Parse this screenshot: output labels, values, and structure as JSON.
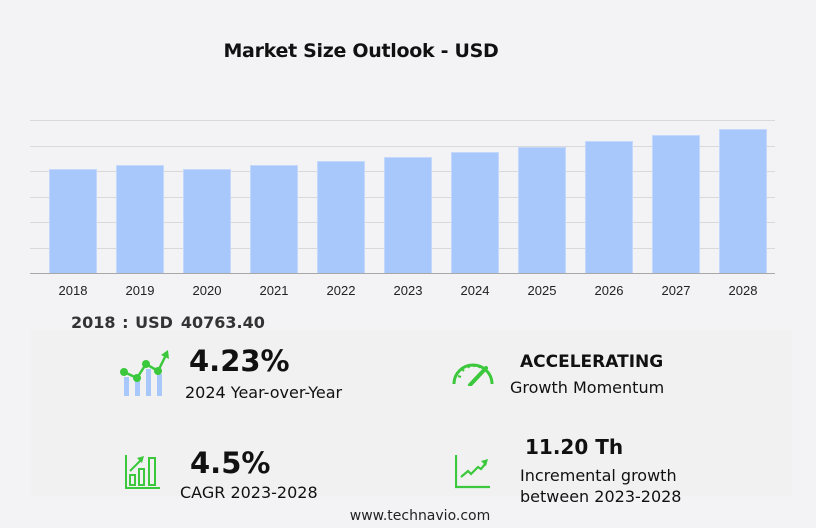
{
  "title": "Market Size Outlook  - USD",
  "chart_data": {
    "type": "bar",
    "title": "Market Size Outlook  - USD",
    "xlabel": "",
    "ylabel": "",
    "categories": [
      "2018",
      "2019",
      "2020",
      "2021",
      "2022",
      "2023",
      "2024",
      "2025",
      "2026",
      "2027",
      "2028"
    ],
    "values": [
      40763.4,
      42350,
      40760,
      42350,
      43900,
      45450,
      47370,
      49400,
      51700,
      54100,
      56650
    ],
    "ylim": [
      0,
      60000
    ],
    "y_gridlines": [
      0,
      10000,
      20000,
      30000,
      40000,
      50000,
      60000
    ],
    "y_tick_labels_visible": false,
    "grid": true,
    "legend": null,
    "bar_color": "#a8c8fc"
  },
  "first_year_label": {
    "year": "2018 : USD",
    "value": "40763.40"
  },
  "stats": {
    "yoy": {
      "value": "4.23%",
      "label": "2024 Year-over-Year",
      "icon": "growth-line-bar-icon"
    },
    "momentum": {
      "value": "ACCELERATING",
      "label": "Growth Momentum",
      "icon": "speedometer-icon"
    },
    "cagr": {
      "value": "4.5%",
      "label": "CAGR 2023-2028",
      "icon": "bar-chart-arrow-icon"
    },
    "incremental": {
      "value": "11.20 Th",
      "label_line1": "Incremental growth",
      "label_line2": "between 2023-2028",
      "icon": "trend-line-icon"
    }
  },
  "colors": {
    "accent_green": "#3cc83c",
    "bar": "#a8c8fc",
    "background": "#f3f3f5"
  },
  "footer": "www.technavio.com"
}
